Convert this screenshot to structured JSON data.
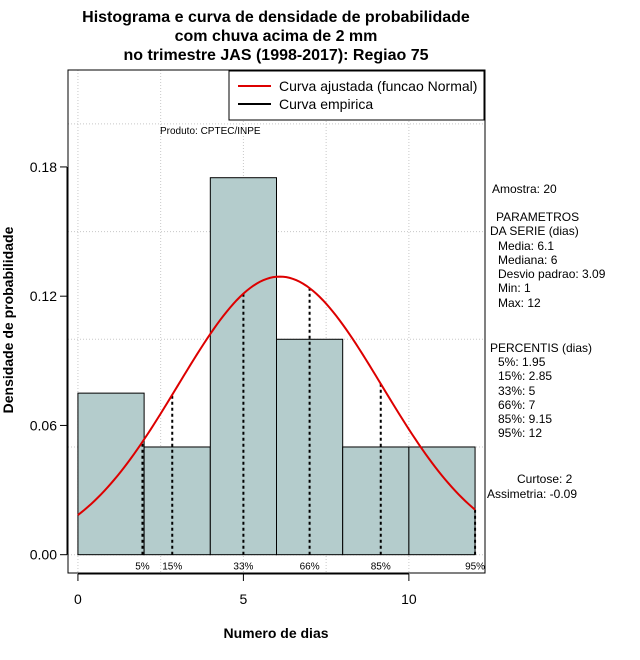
{
  "title_lines": [
    "Histograma e curva de densidade de probabilidade",
    "com chuva acima de 2 mm",
    "no trimestre JAS (1998-2017): Regiao 75"
  ],
  "product": "Produto: CPTEC/INPE",
  "legend": {
    "fitted": "Curva ajustada (funcao Normal)",
    "empirical": "Curva empirica",
    "fitted_color": "#dd0000",
    "empirical_color": "#000000"
  },
  "colors": {
    "bar_fill": "#b4cccc",
    "bar_stroke": "#000000"
  },
  "stats": {
    "amostra": "Amostra: 20",
    "params_header_1": "PARAMETROS",
    "params_header_2": "DA SERIE (dias)",
    "media": "Media: 6.1",
    "mediana": "Mediana: 6",
    "desvio": "Desvio padrao: 3.09",
    "min": "Min: 1",
    "max": "Max: 12",
    "percentis_header": "PERCENTIS (dias)",
    "p5": "5%: 1.95",
    "p15": "15%: 2.85",
    "p33": "33%: 5",
    "p66": "66%: 7",
    "p85": "85%: 9.15",
    "p95": "95%: 12",
    "curtose": "Curtose: 2",
    "assimetria": "Assimetria: -0.09"
  },
  "chart_data": {
    "type": "bar",
    "xlabel": "Numero de dias",
    "ylabel": "Densidade de probabilidade",
    "xlim": [
      -0.3,
      12.3
    ],
    "ylim": [
      -0.0085,
      0.225
    ],
    "x_ticks": [
      0,
      5,
      10
    ],
    "y_ticks": [
      0.0,
      0.06,
      0.12,
      0.18
    ],
    "y_tick_labels": [
      "0.00",
      "0.06",
      "0.12",
      "0.18"
    ],
    "bins": [
      {
        "start": 0,
        "end": 2,
        "density": 0.075
      },
      {
        "start": 2,
        "end": 4,
        "density": 0.05
      },
      {
        "start": 4,
        "end": 6,
        "density": 0.175
      },
      {
        "start": 6,
        "end": 8,
        "density": 0.1
      },
      {
        "start": 8,
        "end": 10,
        "density": 0.05
      },
      {
        "start": 10,
        "end": 12,
        "density": 0.05
      }
    ],
    "normal_fit": {
      "mean": 6.1,
      "sd": 3.09,
      "from": 0,
      "to": 12
    },
    "percentiles": [
      {
        "label": "5%",
        "value": 1.95
      },
      {
        "label": "15%",
        "value": 2.85
      },
      {
        "label": "33%",
        "value": 5
      },
      {
        "label": "66%",
        "value": 7
      },
      {
        "label": "85%",
        "value": 9.15
      },
      {
        "label": "95%",
        "value": 12
      }
    ],
    "grid": true,
    "legend_position": "top-right"
  }
}
